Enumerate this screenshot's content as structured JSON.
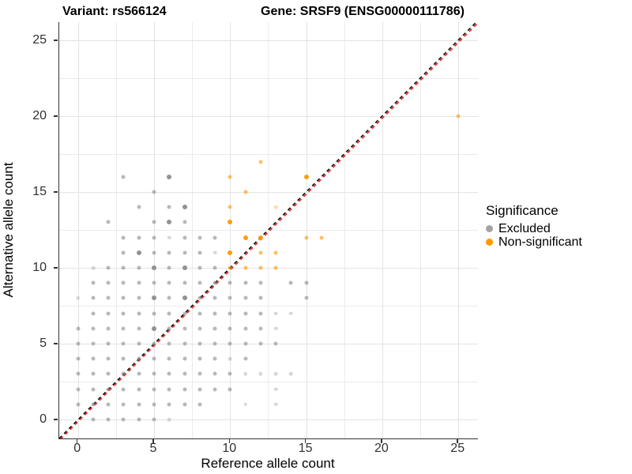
{
  "titles": {
    "variant": "Variant: rs566124",
    "gene": "Gene: SRSF9 (ENSG00000111786)"
  },
  "axes": {
    "x": {
      "label": "Reference allele count",
      "ticks": [
        0,
        5,
        10,
        15,
        20,
        25
      ]
    },
    "y": {
      "label": "Alternative allele count",
      "ticks": [
        0,
        5,
        10,
        15,
        20,
        25
      ]
    }
  },
  "legend": {
    "title": "Significance",
    "items": [
      {
        "label": "Excluded",
        "color": "#a3a3a3"
      },
      {
        "label": "Non-significant",
        "color": "#ff9800"
      }
    ]
  },
  "chart_data": {
    "type": "scatter",
    "title": "Variant: rs566124 — Gene: SRSF9 (ENSG00000111786)",
    "xlabel": "Reference allele count",
    "ylabel": "Alternative allele count",
    "xlim": [
      -1.25,
      26.25
    ],
    "ylim": [
      -1.25,
      26.2
    ],
    "grid": {
      "major_every": 5,
      "minor_every": 2.5,
      "max": 25
    },
    "identity_line": {
      "style": "dashed",
      "colors": [
        "#111111",
        "#e8251f"
      ],
      "equation": "y = x"
    },
    "series": [
      {
        "name": "Excluded",
        "color": "#8c8c8c",
        "points": [
          [
            1,
            0,
            "m"
          ],
          [
            2,
            0,
            "m"
          ],
          [
            3,
            0,
            "m"
          ],
          [
            4,
            0,
            "m"
          ],
          [
            5,
            0,
            "m"
          ],
          [
            6,
            0,
            "l"
          ],
          [
            0,
            1,
            "m"
          ],
          [
            1,
            1,
            "m"
          ],
          [
            2,
            1,
            "m"
          ],
          [
            3,
            1,
            "m"
          ],
          [
            4,
            1,
            "m"
          ],
          [
            5,
            1,
            "m"
          ],
          [
            6,
            1,
            "m"
          ],
          [
            7,
            1,
            "m"
          ],
          [
            8,
            1,
            "m"
          ],
          [
            11,
            1,
            "l"
          ],
          [
            13,
            1,
            "l"
          ],
          [
            0,
            2,
            "m"
          ],
          [
            1,
            2,
            "m"
          ],
          [
            2,
            2,
            "m"
          ],
          [
            3,
            2,
            "m"
          ],
          [
            4,
            2,
            "m"
          ],
          [
            5,
            2,
            "m"
          ],
          [
            6,
            2,
            "m"
          ],
          [
            7,
            2,
            "m"
          ],
          [
            8,
            2,
            "m"
          ],
          [
            9,
            2,
            "m"
          ],
          [
            10,
            2,
            "m"
          ],
          [
            13,
            2,
            "l"
          ],
          [
            0,
            3,
            "m"
          ],
          [
            1,
            3,
            "m"
          ],
          [
            2,
            3,
            "m"
          ],
          [
            3,
            3,
            "m"
          ],
          [
            4,
            3,
            "m"
          ],
          [
            5,
            3,
            "m"
          ],
          [
            6,
            3,
            "m"
          ],
          [
            7,
            3,
            "m"
          ],
          [
            8,
            3,
            "m"
          ],
          [
            9,
            3,
            "m"
          ],
          [
            10,
            3,
            "m"
          ],
          [
            11,
            3,
            "l"
          ],
          [
            12,
            3,
            "l"
          ],
          [
            13,
            3,
            "l"
          ],
          [
            14,
            3,
            "l"
          ],
          [
            0,
            4,
            "m"
          ],
          [
            1,
            4,
            "m"
          ],
          [
            2,
            4,
            "m"
          ],
          [
            3,
            4,
            "m"
          ],
          [
            4,
            4,
            "m"
          ],
          [
            5,
            4,
            "m"
          ],
          [
            6,
            4,
            "m"
          ],
          [
            7,
            4,
            "m"
          ],
          [
            8,
            4,
            "m"
          ],
          [
            9,
            4,
            "m"
          ],
          [
            10,
            4,
            "l"
          ],
          [
            11,
            4,
            "m"
          ],
          [
            0,
            5,
            "m"
          ],
          [
            1,
            5,
            "m"
          ],
          [
            2,
            5,
            "m"
          ],
          [
            3,
            5,
            "m"
          ],
          [
            4,
            5,
            "m"
          ],
          [
            5,
            5,
            "m"
          ],
          [
            6,
            5,
            "m"
          ],
          [
            7,
            5,
            "m"
          ],
          [
            8,
            5,
            "m"
          ],
          [
            9,
            5,
            "m"
          ],
          [
            10,
            5,
            "m"
          ],
          [
            11,
            5,
            "m"
          ],
          [
            12,
            5,
            "m"
          ],
          [
            13,
            5,
            "m"
          ],
          [
            0,
            6,
            "m"
          ],
          [
            1,
            6,
            "m"
          ],
          [
            2,
            6,
            "m"
          ],
          [
            3,
            6,
            "m"
          ],
          [
            4,
            6,
            "m"
          ],
          [
            5,
            6,
            "d"
          ],
          [
            6,
            6,
            "m"
          ],
          [
            7,
            6,
            "m"
          ],
          [
            8,
            6,
            "m"
          ],
          [
            9,
            6,
            "m"
          ],
          [
            10,
            6,
            "m"
          ],
          [
            11,
            6,
            "m"
          ],
          [
            12,
            6,
            "m"
          ],
          [
            13,
            6,
            "l"
          ],
          [
            1,
            7,
            "m"
          ],
          [
            2,
            7,
            "m"
          ],
          [
            3,
            7,
            "m"
          ],
          [
            4,
            7,
            "m"
          ],
          [
            5,
            7,
            "m"
          ],
          [
            6,
            7,
            "m"
          ],
          [
            7,
            7,
            "m"
          ],
          [
            8,
            7,
            "m"
          ],
          [
            9,
            7,
            "m"
          ],
          [
            10,
            7,
            "m"
          ],
          [
            11,
            7,
            "m"
          ],
          [
            12,
            7,
            "m"
          ],
          [
            13,
            7,
            "l"
          ],
          [
            14,
            7,
            "l"
          ],
          [
            0,
            8,
            "l"
          ],
          [
            1,
            8,
            "m"
          ],
          [
            2,
            8,
            "m"
          ],
          [
            3,
            8,
            "m"
          ],
          [
            4,
            8,
            "m"
          ],
          [
            5,
            8,
            "d"
          ],
          [
            6,
            8,
            "m"
          ],
          [
            7,
            8,
            "d"
          ],
          [
            8,
            8,
            "m"
          ],
          [
            9,
            8,
            "m"
          ],
          [
            10,
            8,
            "m"
          ],
          [
            11,
            8,
            "m"
          ],
          [
            12,
            8,
            "m"
          ],
          [
            15,
            8,
            "m"
          ],
          [
            1,
            9,
            "m"
          ],
          [
            2,
            9,
            "m"
          ],
          [
            3,
            9,
            "m"
          ],
          [
            4,
            9,
            "m"
          ],
          [
            5,
            9,
            "m"
          ],
          [
            6,
            9,
            "m"
          ],
          [
            7,
            9,
            "m"
          ],
          [
            8,
            9,
            "m"
          ],
          [
            9,
            9,
            "m"
          ],
          [
            10,
            9,
            "m"
          ],
          [
            11,
            9,
            "m"
          ],
          [
            12,
            9,
            "m"
          ],
          [
            14,
            9,
            "m"
          ],
          [
            15,
            9,
            "m"
          ],
          [
            1,
            10,
            "l"
          ],
          [
            2,
            10,
            "m"
          ],
          [
            3,
            10,
            "m"
          ],
          [
            4,
            10,
            "m"
          ],
          [
            5,
            10,
            "d"
          ],
          [
            6,
            10,
            "m"
          ],
          [
            7,
            10,
            "d"
          ],
          [
            8,
            10,
            "m"
          ],
          [
            9,
            10,
            "m"
          ],
          [
            3,
            11,
            "m"
          ],
          [
            4,
            11,
            "d"
          ],
          [
            5,
            11,
            "m"
          ],
          [
            6,
            11,
            "m"
          ],
          [
            7,
            11,
            "m"
          ],
          [
            8,
            11,
            "m"
          ],
          [
            9,
            11,
            "l"
          ],
          [
            3,
            12,
            "m"
          ],
          [
            4,
            12,
            "m"
          ],
          [
            5,
            12,
            "m"
          ],
          [
            6,
            12,
            "l"
          ],
          [
            7,
            12,
            "m"
          ],
          [
            8,
            12,
            "m"
          ],
          [
            9,
            12,
            "m"
          ],
          [
            2,
            13,
            "m"
          ],
          [
            5,
            13,
            "m"
          ],
          [
            6,
            13,
            "d"
          ],
          [
            7,
            13,
            "m"
          ],
          [
            4,
            14,
            "m"
          ],
          [
            6,
            14,
            "m"
          ],
          [
            7,
            14,
            "d"
          ],
          [
            5,
            15,
            "m"
          ],
          [
            3,
            16,
            "m"
          ],
          [
            6,
            16,
            "d"
          ]
        ]
      },
      {
        "name": "Non-significant",
        "color": "#ff9800",
        "points": [
          [
            10,
            10,
            "m"
          ],
          [
            11,
            10,
            "m"
          ],
          [
            12,
            10,
            "m"
          ],
          [
            13,
            10,
            "m"
          ],
          [
            10,
            11,
            "d"
          ],
          [
            12,
            11,
            "m"
          ],
          [
            13,
            11,
            "m"
          ],
          [
            11,
            12,
            "d"
          ],
          [
            12,
            12,
            "d"
          ],
          [
            15,
            12,
            "m"
          ],
          [
            16,
            12,
            "m"
          ],
          [
            10,
            13,
            "d"
          ],
          [
            10,
            14,
            "m"
          ],
          [
            13,
            14,
            "l"
          ],
          [
            11,
            15,
            "m"
          ],
          [
            10,
            16,
            "m"
          ],
          [
            15,
            16,
            "d"
          ],
          [
            12,
            17,
            "m"
          ],
          [
            25,
            20,
            "m"
          ]
        ]
      }
    ]
  }
}
